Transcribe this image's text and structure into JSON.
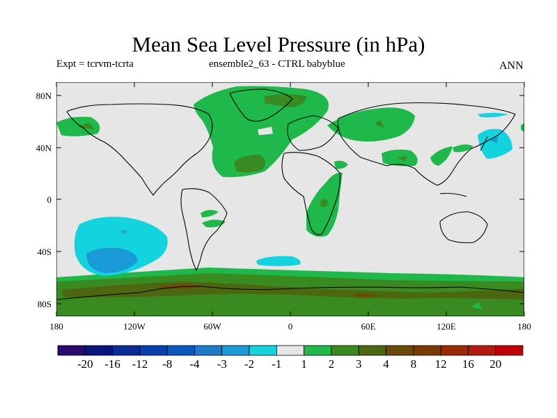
{
  "title": "Mean Sea Level Pressure (in hPa)",
  "subtitle_left": "Expt = tcrvm-tcrta",
  "subtitle_center": "ensemble2_63 - CTRL babyblue",
  "subtitle_right": "ANN",
  "map": {
    "projection": "cylindrical equidistant",
    "lon_range": [
      -180,
      180
    ],
    "lat_range": [
      -90,
      90
    ],
    "background_color": "#e6e6e6",
    "y_ticks": [
      "80N",
      "40N",
      "0",
      "40S",
      "80S"
    ],
    "x_ticks": [
      "180",
      "120W",
      "60W",
      "0",
      "60E",
      "120E",
      "180"
    ]
  },
  "colorbar": {
    "colors": [
      "#2a0a6e",
      "#0c157a",
      "#0a2b96",
      "#0a3fb0",
      "#0a58bf",
      "#1e7ac8",
      "#1a9bd7",
      "#13d4de",
      "#e6e6e6",
      "#1fb84a",
      "#3a8a22",
      "#4d6610",
      "#6a4a08",
      "#7a3a06",
      "#9a2a08",
      "#b21a10",
      "#c00008"
    ],
    "labels": [
      "-20",
      "-16",
      "-12",
      "-8",
      "-4",
      "-3",
      "-2",
      "-1",
      "1",
      "2",
      "3",
      "4",
      "8",
      "12",
      "16",
      "20"
    ]
  }
}
